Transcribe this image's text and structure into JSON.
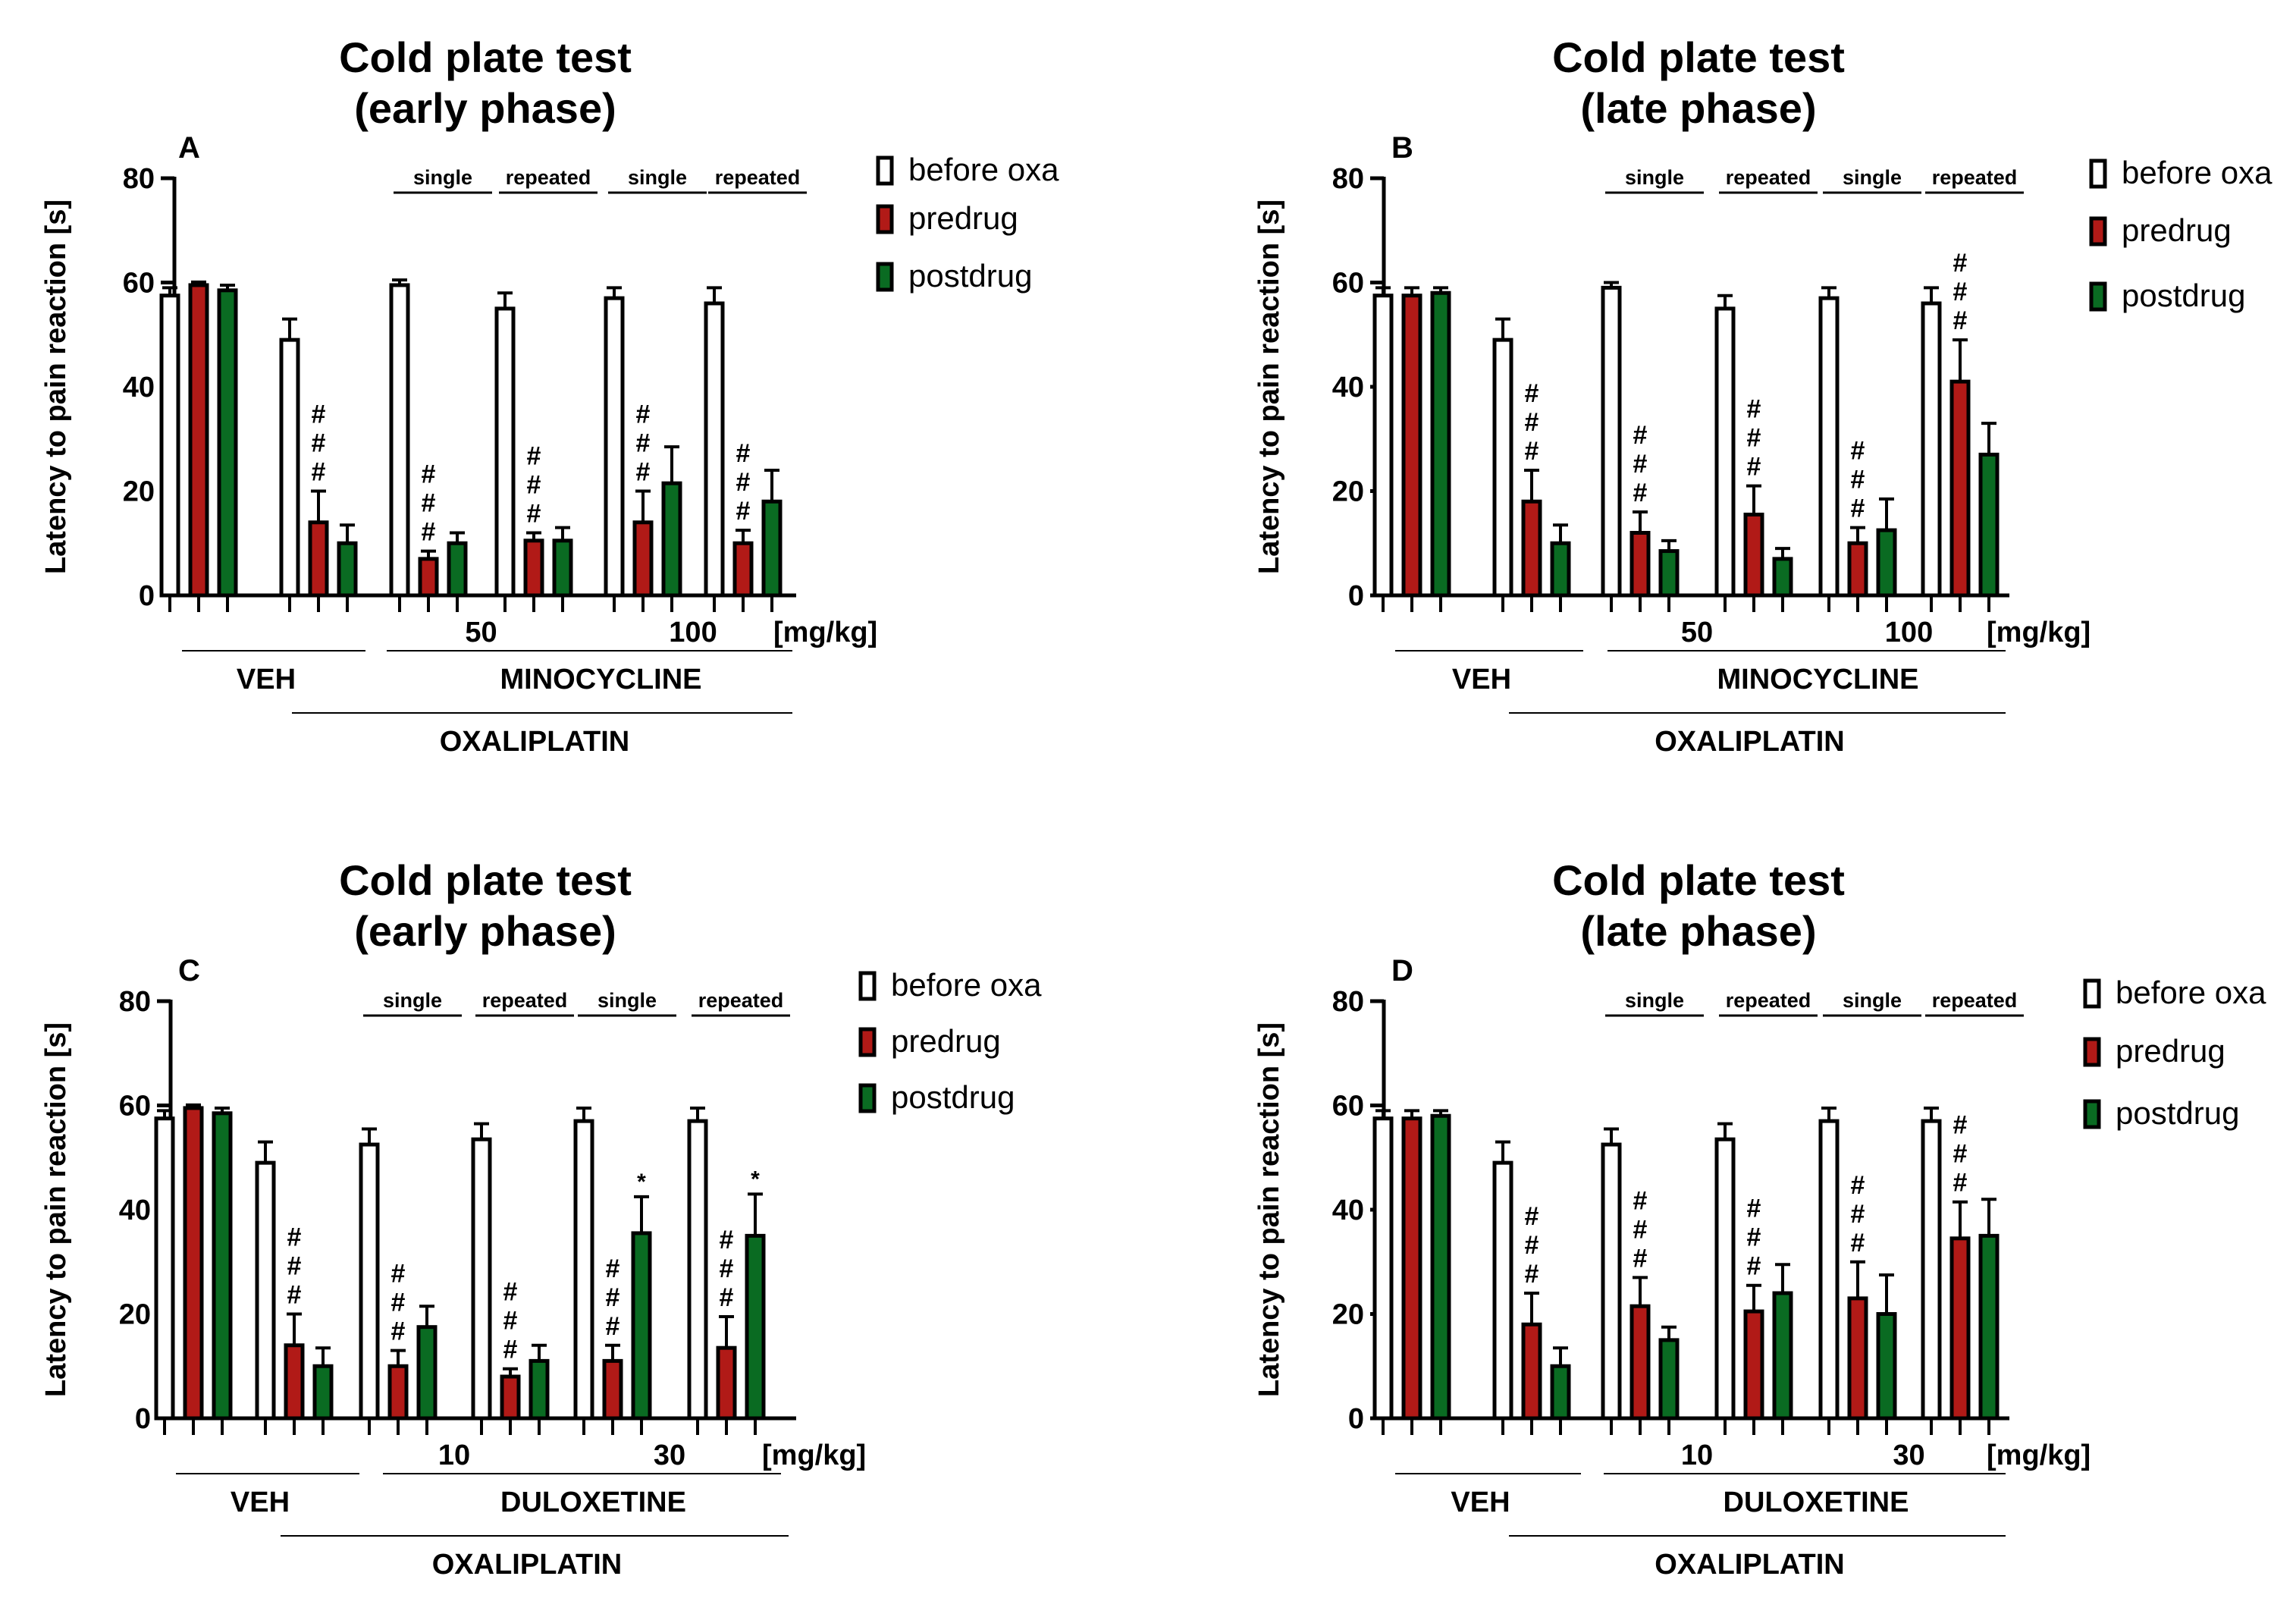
{
  "colors": {
    "before": "#ffffff",
    "predrug": "#b11a17",
    "postdrug": "#0a6b22",
    "ink": "#000000"
  },
  "chart_data": [
    {
      "id": "A",
      "type": "bar",
      "panel_letter": "A",
      "title_lines": [
        "Cold plate test",
        "(early phase)"
      ],
      "ylabel": "Latency to pain reaction [s]",
      "ylim": [
        0,
        80
      ],
      "yticks": [
        "0",
        "20",
        "40",
        "60",
        "80"
      ],
      "legend": [
        {
          "key": "before",
          "label": "before oxa"
        },
        {
          "key": "predrug",
          "label": "predrug"
        },
        {
          "key": "postdrug",
          "label": "postdrug"
        }
      ],
      "series": [
        {
          "name": "before oxa",
          "key": "before",
          "values": [
            57.5,
            49,
            59.5,
            55,
            57,
            56
          ]
        },
        {
          "name": "predrug",
          "key": "predrug",
          "values": [
            59.5,
            14,
            7,
            10.5,
            14,
            10
          ]
        },
        {
          "name": "postdrug",
          "key": "postdrug",
          "values": [
            58.5,
            10,
            10,
            10.5,
            21.5,
            18
          ]
        }
      ],
      "errors": [
        [
          1.5,
          4,
          1,
          3,
          2,
          3
        ],
        [
          0.6,
          6,
          1.5,
          1.5,
          6,
          2.5
        ],
        [
          1,
          3.5,
          2,
          2.5,
          7,
          6
        ]
      ],
      "significance": [
        {
          "group": 1,
          "bar": 1,
          "text": "#"
        },
        {
          "group": 2,
          "bar": 1,
          "text": "#"
        },
        {
          "group": 3,
          "bar": 1,
          "text": "#"
        },
        {
          "group": 4,
          "bar": 1,
          "text": "#"
        },
        {
          "group": 5,
          "bar": 1,
          "text": "#"
        }
      ],
      "sub_labels": [
        "single",
        "repeated",
        "single",
        "repeated"
      ],
      "doses": [
        "50",
        "100"
      ],
      "unit": "[mg/kg]",
      "treatment": "MINOCYCLINE",
      "vehicle": "VEH",
      "baseline_drug": "OXALIPLATIN"
    },
    {
      "id": "B",
      "type": "bar",
      "panel_letter": "B",
      "title_lines": [
        "Cold plate test",
        "(late phase)"
      ],
      "ylabel": "Latency to pain reaction [s]",
      "ylim": [
        0,
        80
      ],
      "yticks": [
        "0",
        "20",
        "40",
        "60",
        "80"
      ],
      "legend": [
        {
          "key": "before",
          "label": "before oxa"
        },
        {
          "key": "predrug",
          "label": "predrug"
        },
        {
          "key": "postdrug",
          "label": "postdrug"
        }
      ],
      "series": [
        {
          "name": "before oxa",
          "key": "before",
          "values": [
            57.5,
            49,
            59,
            55,
            57,
            56
          ]
        },
        {
          "name": "predrug",
          "key": "predrug",
          "values": [
            57.5,
            18,
            12,
            15.5,
            10,
            41
          ]
        },
        {
          "name": "postdrug",
          "key": "postdrug",
          "values": [
            58,
            10,
            8.5,
            7,
            12.5,
            27
          ]
        }
      ],
      "errors": [
        [
          1.5,
          4,
          1,
          2.5,
          2,
          3
        ],
        [
          1.5,
          6,
          4,
          5.5,
          3,
          8
        ],
        [
          1,
          3.5,
          2,
          2,
          6,
          6
        ]
      ],
      "significance": [
        {
          "group": 1,
          "bar": 1,
          "text": "#"
        },
        {
          "group": 2,
          "bar": 1,
          "text": "#"
        },
        {
          "group": 3,
          "bar": 1,
          "text": "#"
        },
        {
          "group": 4,
          "bar": 1,
          "text": "#"
        },
        {
          "group": 5,
          "bar": 1,
          "text": "#"
        }
      ],
      "sub_labels": [
        "single",
        "repeated",
        "single",
        "repeated"
      ],
      "doses": [
        "50",
        "100"
      ],
      "unit": "[mg/kg]",
      "treatment": "MINOCYCLINE",
      "vehicle": "VEH",
      "baseline_drug": "OXALIPLATIN"
    },
    {
      "id": "C",
      "type": "bar",
      "panel_letter": "C",
      "title_lines": [
        "Cold plate test",
        "(early phase)"
      ],
      "ylabel": "Latency to pain reaction [s]",
      "ylim": [
        0,
        80
      ],
      "yticks": [
        "0",
        "20",
        "40",
        "60",
        "80"
      ],
      "legend": [
        {
          "key": "before",
          "label": "before oxa"
        },
        {
          "key": "predrug",
          "label": "predrug"
        },
        {
          "key": "postdrug",
          "label": "postdrug"
        }
      ],
      "series": [
        {
          "name": "before oxa",
          "key": "before",
          "values": [
            57.5,
            49,
            52.5,
            53.5,
            57,
            57
          ]
        },
        {
          "name": "predrug",
          "key": "predrug",
          "values": [
            59.5,
            14,
            10,
            8,
            11,
            13.5
          ]
        },
        {
          "name": "postdrug",
          "key": "postdrug",
          "values": [
            58.5,
            10,
            17.5,
            11,
            35.5,
            35
          ]
        }
      ],
      "errors": [
        [
          1.5,
          4,
          3,
          3,
          2.5,
          2.5
        ],
        [
          0.6,
          6,
          3,
          1.5,
          3,
          6
        ],
        [
          1,
          3.5,
          4,
          3,
          7,
          8
        ]
      ],
      "significance": [
        {
          "group": 1,
          "bar": 1,
          "text": "#"
        },
        {
          "group": 2,
          "bar": 1,
          "text": "#"
        },
        {
          "group": 3,
          "bar": 1,
          "text": "#"
        },
        {
          "group": 4,
          "bar": 1,
          "text": "#"
        },
        {
          "group": 5,
          "bar": 1,
          "text": "#"
        },
        {
          "group": 4,
          "bar": 2,
          "text": "*"
        },
        {
          "group": 5,
          "bar": 2,
          "text": "*"
        }
      ],
      "sub_labels": [
        "single",
        "repeated",
        "single",
        "repeated"
      ],
      "doses": [
        "10",
        "30"
      ],
      "unit": "[mg/kg]",
      "treatment": "DULOXETINE",
      "vehicle": "VEH",
      "baseline_drug": "OXALIPLATIN"
    },
    {
      "id": "D",
      "type": "bar",
      "panel_letter": "D",
      "title_lines": [
        "Cold plate test",
        "(late phase)"
      ],
      "ylabel": "Latency to pain reaction [s]",
      "ylim": [
        0,
        80
      ],
      "yticks": [
        "0",
        "20",
        "40",
        "60",
        "80"
      ],
      "legend": [
        {
          "key": "before",
          "label": "before oxa"
        },
        {
          "key": "predrug",
          "label": "predrug"
        },
        {
          "key": "postdrug",
          "label": "postdrug"
        }
      ],
      "series": [
        {
          "name": "before oxa",
          "key": "before",
          "values": [
            57.5,
            49,
            52.5,
            53.5,
            57,
            57
          ]
        },
        {
          "name": "predrug",
          "key": "predrug",
          "values": [
            57.5,
            18,
            21.5,
            20.5,
            23,
            34.5
          ]
        },
        {
          "name": "postdrug",
          "key": "postdrug",
          "values": [
            58,
            10,
            15,
            24,
            20,
            35
          ]
        }
      ],
      "errors": [
        [
          1.5,
          4,
          3,
          3,
          2.5,
          2.5
        ],
        [
          1.5,
          6,
          5.5,
          5,
          7,
          7
        ],
        [
          1,
          3.5,
          2.5,
          5.5,
          7.5,
          7
        ]
      ],
      "significance": [
        {
          "group": 1,
          "bar": 1,
          "text": "#"
        },
        {
          "group": 2,
          "bar": 1,
          "text": "#"
        },
        {
          "group": 3,
          "bar": 1,
          "text": "#"
        },
        {
          "group": 4,
          "bar": 1,
          "text": "#"
        },
        {
          "group": 5,
          "bar": 1,
          "text": "#"
        }
      ],
      "sub_labels": [
        "single",
        "repeated",
        "single",
        "repeated"
      ],
      "doses": [
        "10",
        "30"
      ],
      "unit": "[mg/kg]",
      "treatment": "DULOXETINE",
      "vehicle": "VEH",
      "baseline_drug": "OXALIPLATIN"
    }
  ]
}
